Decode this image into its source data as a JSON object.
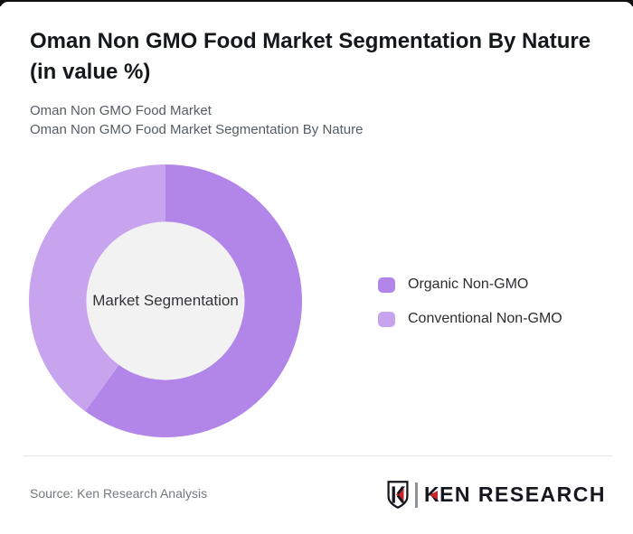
{
  "page": {
    "title": "Oman Non GMO Food Market Segmentation By Nature (in value %)",
    "subtitle_line1": "Oman Non GMO Food Market",
    "subtitle_line2": "Oman Non GMO Food Market Segmentation By Nature",
    "source": "Source: Ken Research Analysis"
  },
  "logo": {
    "k": "K",
    "rest": "EN RESEARCH",
    "accent_color": "#c5272c",
    "text_color": "#16161e"
  },
  "chart_data": {
    "type": "pie",
    "title": "Oman Non GMO Food Market Segmentation By Nature (in value %)",
    "center_label": "Market Segmentation",
    "donut": true,
    "inner_radius_ratio": 0.58,
    "inner_circle_color": "#f2f2f2",
    "start_angle_deg": 0,
    "direction": "clockwise",
    "unit": "%",
    "legend_position": "right",
    "series": [
      {
        "name": "Organic Non-GMO",
        "value": 60,
        "color": "#b285e8"
      },
      {
        "name": "Conventional Non-GMO",
        "value": 40,
        "color": "#c8a4ef"
      }
    ]
  }
}
